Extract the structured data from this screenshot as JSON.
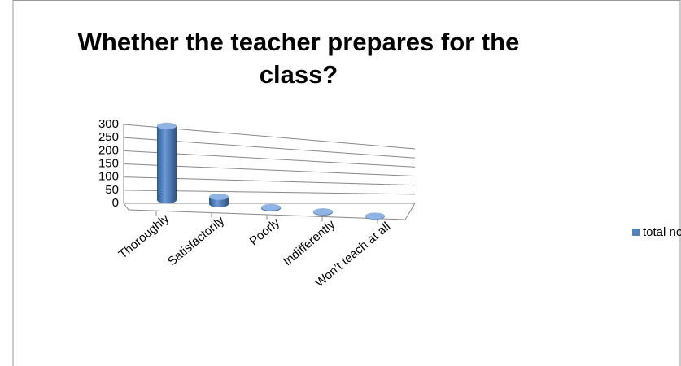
{
  "chart_data": {
    "type": "bar",
    "title": "Whether the teacher prepares for the class?",
    "categories": [
      "Thoroughly",
      "Satisfactorily",
      "Poorly",
      "Indifferently",
      "Won’t teach at all"
    ],
    "series": [
      {
        "name": "total no. of students",
        "color": "#4f81bd",
        "values": [
          285,
          30,
          4,
          3,
          2
        ]
      }
    ],
    "ylim": [
      0,
      300
    ],
    "yticks": [
      0,
      50,
      100,
      150,
      200,
      250,
      300
    ],
    "grid": true,
    "legend": "right"
  }
}
